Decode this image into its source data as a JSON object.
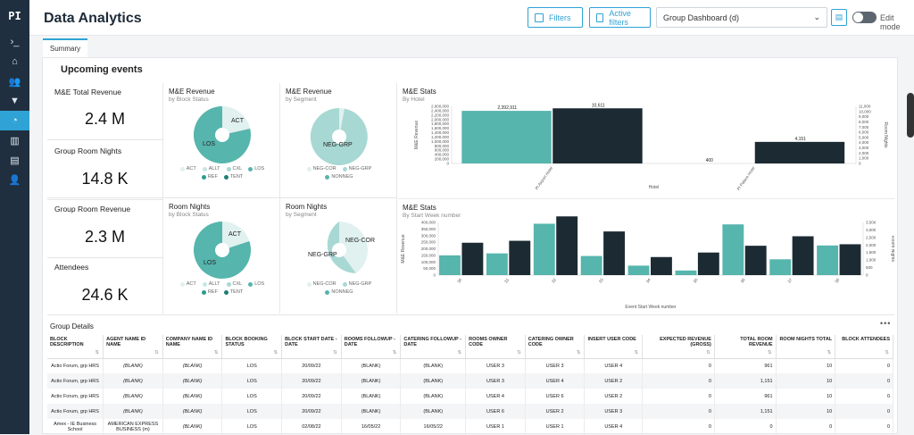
{
  "sidebar": {
    "logo": "PI",
    "items": [
      {
        "name": "terminal-icon",
        "glyph": "›_"
      },
      {
        "name": "home-icon",
        "glyph": "⌂"
      },
      {
        "name": "users-icon",
        "glyph": "👥"
      },
      {
        "name": "filter-icon",
        "glyph": "▼"
      },
      {
        "name": "dashboard-icon",
        "glyph": "◔"
      },
      {
        "name": "org-icon",
        "glyph": "▥"
      },
      {
        "name": "table-icon",
        "glyph": "▤"
      },
      {
        "name": "group-icon",
        "glyph": "👤"
      }
    ]
  },
  "header": {
    "title": "Data Analytics",
    "filters_label": "Filters",
    "active_filters_label": "Active filters",
    "dashboard_select": "Group Dashboard (d)",
    "edit_mode_label": "Edit mode"
  },
  "tabs": [
    {
      "label": "Summary"
    }
  ],
  "section_title": "Upcoming events",
  "kpis": {
    "total_revenue": {
      "title": "M&E Total Revenue",
      "value": "2.4 M"
    },
    "room_nights": {
      "title": "Group Room Nights",
      "value": "14.8 K"
    },
    "room_revenue": {
      "title": "Group Room Revenue",
      "value": "2.3 M"
    },
    "attendees": {
      "title": "Attendees",
      "value": "24.6 K"
    }
  },
  "colors": {
    "teal": "#56b5ad",
    "dark": "#1c2b33",
    "light_teal": "#a8d8d3",
    "pale": "#e0f1ef",
    "accent": "#2fa3d6"
  },
  "charts": {
    "rev_block": {
      "title": "M&E Revenue",
      "subtitle": "by Block Status",
      "labels": [
        "ACT",
        "LOS"
      ],
      "legend": [
        "ACT",
        "ALLT",
        "CXL",
        "LOS",
        "REF",
        "TENT"
      ]
    },
    "rev_segment": {
      "title": "M&E Revenue",
      "subtitle": "by Segment",
      "labels": [
        "NEG-GRP"
      ],
      "legend": [
        "NEG-COR",
        "NEG-GRP",
        "NONNEG"
      ]
    },
    "stats_hotel": {
      "title": "M&E Stats",
      "subtitle": "By Hotel",
      "ylabel_left": "M&E Revenue",
      "ylabel_right": "Room Nights",
      "xlabel": "Hotel"
    },
    "rn_block": {
      "title": "Room Nights",
      "subtitle": "by Block Status",
      "labels": [
        "ACT",
        "LOS"
      ],
      "legend": [
        "ACT",
        "ALLT",
        "CXL",
        "LOS",
        "REF",
        "TENT"
      ]
    },
    "rn_segment": {
      "title": "Room Nights",
      "subtitle": "by Segment",
      "labels": [
        "NEG-COR",
        "NEG-GRP"
      ],
      "legend": [
        "NEG-COR",
        "NEG-GRP",
        "NONNEG"
      ]
    },
    "stats_week": {
      "title": "M&E Stats",
      "subtitle": "By Start Week number",
      "ylabel_left": "M&E Revenue",
      "ylabel_right": "Room Nights",
      "xlabel": "Event Start Week number"
    }
  },
  "chart_data": [
    {
      "type": "pie",
      "title": "M&E Revenue",
      "subtitle": "by Block Status",
      "categories": [
        "ACT",
        "LOS"
      ],
      "values": [
        0.25,
        0.75
      ]
    },
    {
      "type": "pie",
      "title": "M&E Revenue",
      "subtitle": "by Segment",
      "categories": [
        "NEG-COR",
        "NEG-GRP"
      ],
      "values": [
        0.03,
        0.97
      ]
    },
    {
      "type": "bar",
      "title": "M&E Stats",
      "subtitle": "By Hotel",
      "xlabel": "Hotel",
      "categories": [
        "PI Airport Hotel",
        "PI Palace Hotel"
      ],
      "series": [
        {
          "name": "M&E Revenue",
          "values": [
            2392911,
            400
          ]
        },
        {
          "name": "Room Nights",
          "values": [
            10611,
            4151
          ]
        }
      ],
      "y_ticks_left": [
        "0",
        "200,000",
        "400,000",
        "600,000",
        "800,000",
        "1,000,000",
        "1,200,000",
        "1,400,000",
        "1,600,000",
        "1,800,000",
        "2,000,000",
        "2,200,000",
        "2,400,000",
        "2,600,000"
      ],
      "y_ticks_right": [
        "0",
        "1,000",
        "2,000",
        "3,000",
        "4,000",
        "5,000",
        "6,000",
        "7,000",
        "8,000",
        "9,000",
        "10,000",
        "11,000"
      ],
      "data_labels": [
        "2,392,911",
        "10,611",
        "400",
        "4,151"
      ],
      "ylim_left": [
        0,
        2600000
      ],
      "ylim_right": [
        0,
        11000
      ]
    },
    {
      "type": "pie",
      "title": "Room Nights",
      "subtitle": "by Block Status",
      "categories": [
        "ACT",
        "LOS"
      ],
      "values": [
        0.2,
        0.8
      ]
    },
    {
      "type": "pie",
      "title": "Room Nights",
      "subtitle": "by Segment",
      "categories": [
        "NEG-COR",
        "NEG-GRP"
      ],
      "values": [
        0.4,
        0.6
      ]
    },
    {
      "type": "bar",
      "title": "M&E Stats",
      "subtitle": "By Start Week number",
      "xlabel": "Event Start Week number",
      "categories": [
        "30",
        "31",
        "32",
        "33",
        "34",
        "35",
        "36",
        "37",
        "38"
      ],
      "series": [
        {
          "name": "M&E Revenue",
          "values": [
            150000,
            165000,
            390000,
            145000,
            72000,
            35000,
            385000,
            120000,
            225000
          ]
        },
        {
          "name": "Room Nights",
          "values": [
            2150,
            2280,
            3900,
            2900,
            1200,
            1500,
            1950,
            2580,
            2050
          ]
        }
      ],
      "y_ticks_left": [
        "0",
        "50,000",
        "100,000",
        "150,000",
        "200,000",
        "250,000",
        "300,000",
        "350,000",
        "400,000"
      ],
      "y_ticks_right": [
        "0",
        "500",
        "1,000",
        "1,500",
        "2,000",
        "2,500",
        "3,000",
        "3,500"
      ],
      "ylim_left": [
        0,
        400000
      ],
      "ylim_right": [
        0,
        3500
      ]
    }
  ],
  "table": {
    "title": "Group Details",
    "more": "•••",
    "headers": [
      "BLOCK DESCRIPTION",
      "AGENT NAME ID NAME",
      "COMPANY NAME ID NAME",
      "BLOCK BOOKING STATUS",
      "BLOCK START DATE - DATE",
      "ROOMS FOLLOWUP - DATE",
      "CATERING FOLLOWUP - DATE",
      "ROOMS OWNER CODE",
      "CATERING OWNER CODE",
      "INSERT USER CODE",
      "EXPECTED REVENUE (GROSS)",
      "TOTAL ROOM REVENUE",
      "ROOM NIGHTS TOTAL",
      "BLOCK ATTENDEES"
    ],
    "rows": [
      [
        "Actio Forum, grp HRS",
        "(BLANK)",
        "(BLANK)",
        "LOS",
        "20/09/22",
        "(BLANK)",
        "(BLANK)",
        "USER 3",
        "USER 3",
        "USER 4",
        "0",
        "961",
        "10",
        "0"
      ],
      [
        "Actio Forum, grp HRS",
        "(BLANK)",
        "(BLANK)",
        "LOS",
        "20/09/22",
        "(BLANK)",
        "(BLANK)",
        "USER 3",
        "USER 4",
        "USER 2",
        "0",
        "1,151",
        "10",
        "0"
      ],
      [
        "Actio Forum, grp HRS",
        "(BLANK)",
        "(BLANK)",
        "LOS",
        "20/09/22",
        "(BLANK)",
        "(BLANK)",
        "USER 4",
        "USER 6",
        "USER 2",
        "0",
        "961",
        "10",
        "0"
      ],
      [
        "Actio Forum, grp HRS",
        "(BLANK)",
        "(BLANK)",
        "LOS",
        "20/09/22",
        "(BLANK)",
        "(BLANK)",
        "USER 6",
        "USER 2",
        "USER 3",
        "0",
        "1,151",
        "10",
        "0"
      ],
      [
        "Amex - IE Business School",
        "AMERICAN EXPRESS BUSINESS (m)",
        "(BLANK)",
        "LOS",
        "02/08/22",
        "16/05/22",
        "16/05/22",
        "USER 1",
        "USER 1",
        "USER 4",
        "0",
        "0",
        "0",
        "0"
      ]
    ]
  }
}
